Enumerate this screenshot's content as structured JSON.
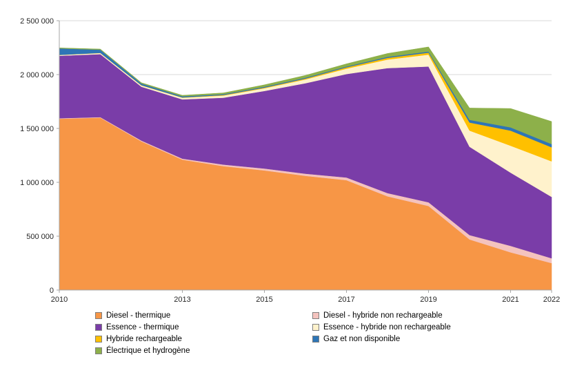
{
  "chart_data": {
    "type": "area",
    "stacked": true,
    "title": "",
    "xlabel": "",
    "ylabel": "",
    "x": [
      2010,
      2011,
      2012,
      2013,
      2014,
      2015,
      2016,
      2017,
      2018,
      2019,
      2020,
      2021,
      2022
    ],
    "x_ticks": [
      2010,
      2013,
      2015,
      2017,
      2019,
      2021,
      2022
    ],
    "x_tick_labels": [
      "2010",
      "2013",
      "2015",
      "2017",
      "2019",
      "2021",
      "2022"
    ],
    "ylim": [
      0,
      2500000
    ],
    "y_ticks": [
      0,
      500000,
      1000000,
      1500000,
      2000000,
      2500000
    ],
    "y_tick_labels": [
      "0",
      "500 000",
      "1 000 000",
      "1 500 000",
      "2 000 000",
      "2 500 000"
    ],
    "grid": true,
    "legend_position": "bottom",
    "series": [
      {
        "name": "Diesel - thermique",
        "color": "#F79646",
        "values": [
          1590000,
          1600000,
          1380000,
          1210000,
          1150000,
          1110000,
          1060000,
          1020000,
          870000,
          780000,
          470000,
          350000,
          250000
        ]
      },
      {
        "name": "Diesel - hybride non rechargeable",
        "color": "#F4C3BE",
        "values": [
          5000,
          5000,
          8000,
          10000,
          15000,
          18000,
          20000,
          25000,
          30000,
          35000,
          40000,
          60000,
          45000
        ]
      },
      {
        "name": "Essence - thermique",
        "color": "#7A3DA8",
        "values": [
          580000,
          585000,
          500000,
          550000,
          620000,
          720000,
          840000,
          960000,
          1160000,
          1260000,
          820000,
          680000,
          570000
        ]
      },
      {
        "name": "Essence - hybride non rechargeable",
        "color": "#FFF2CC",
        "values": [
          8000,
          10000,
          12000,
          15000,
          20000,
          25000,
          35000,
          50000,
          80000,
          110000,
          150000,
          250000,
          330000
        ]
      },
      {
        "name": "Hybride rechargeable",
        "color": "#FFC000",
        "values": [
          0,
          1000,
          2000,
          3000,
          5000,
          6000,
          8000,
          12000,
          15000,
          19000,
          75000,
          140000,
          130000
        ]
      },
      {
        "name": "Gaz et non disponible",
        "color": "#2E75B6",
        "values": [
          60000,
          30000,
          15000,
          10000,
          8000,
          8000,
          8000,
          8000,
          10000,
          10000,
          25000,
          30000,
          30000
        ]
      },
      {
        "name": "Électrique et hydrogène",
        "color": "#8DB04A",
        "values": [
          5000,
          6000,
          8000,
          10000,
          12000,
          18000,
          22000,
          25000,
          31000,
          43000,
          110000,
          175000,
          210000
        ]
      }
    ]
  },
  "colors": {
    "grid": "#D9D9D9",
    "axis": "#A6A6A6",
    "text": "#262626",
    "background": "#FFFFFF"
  }
}
